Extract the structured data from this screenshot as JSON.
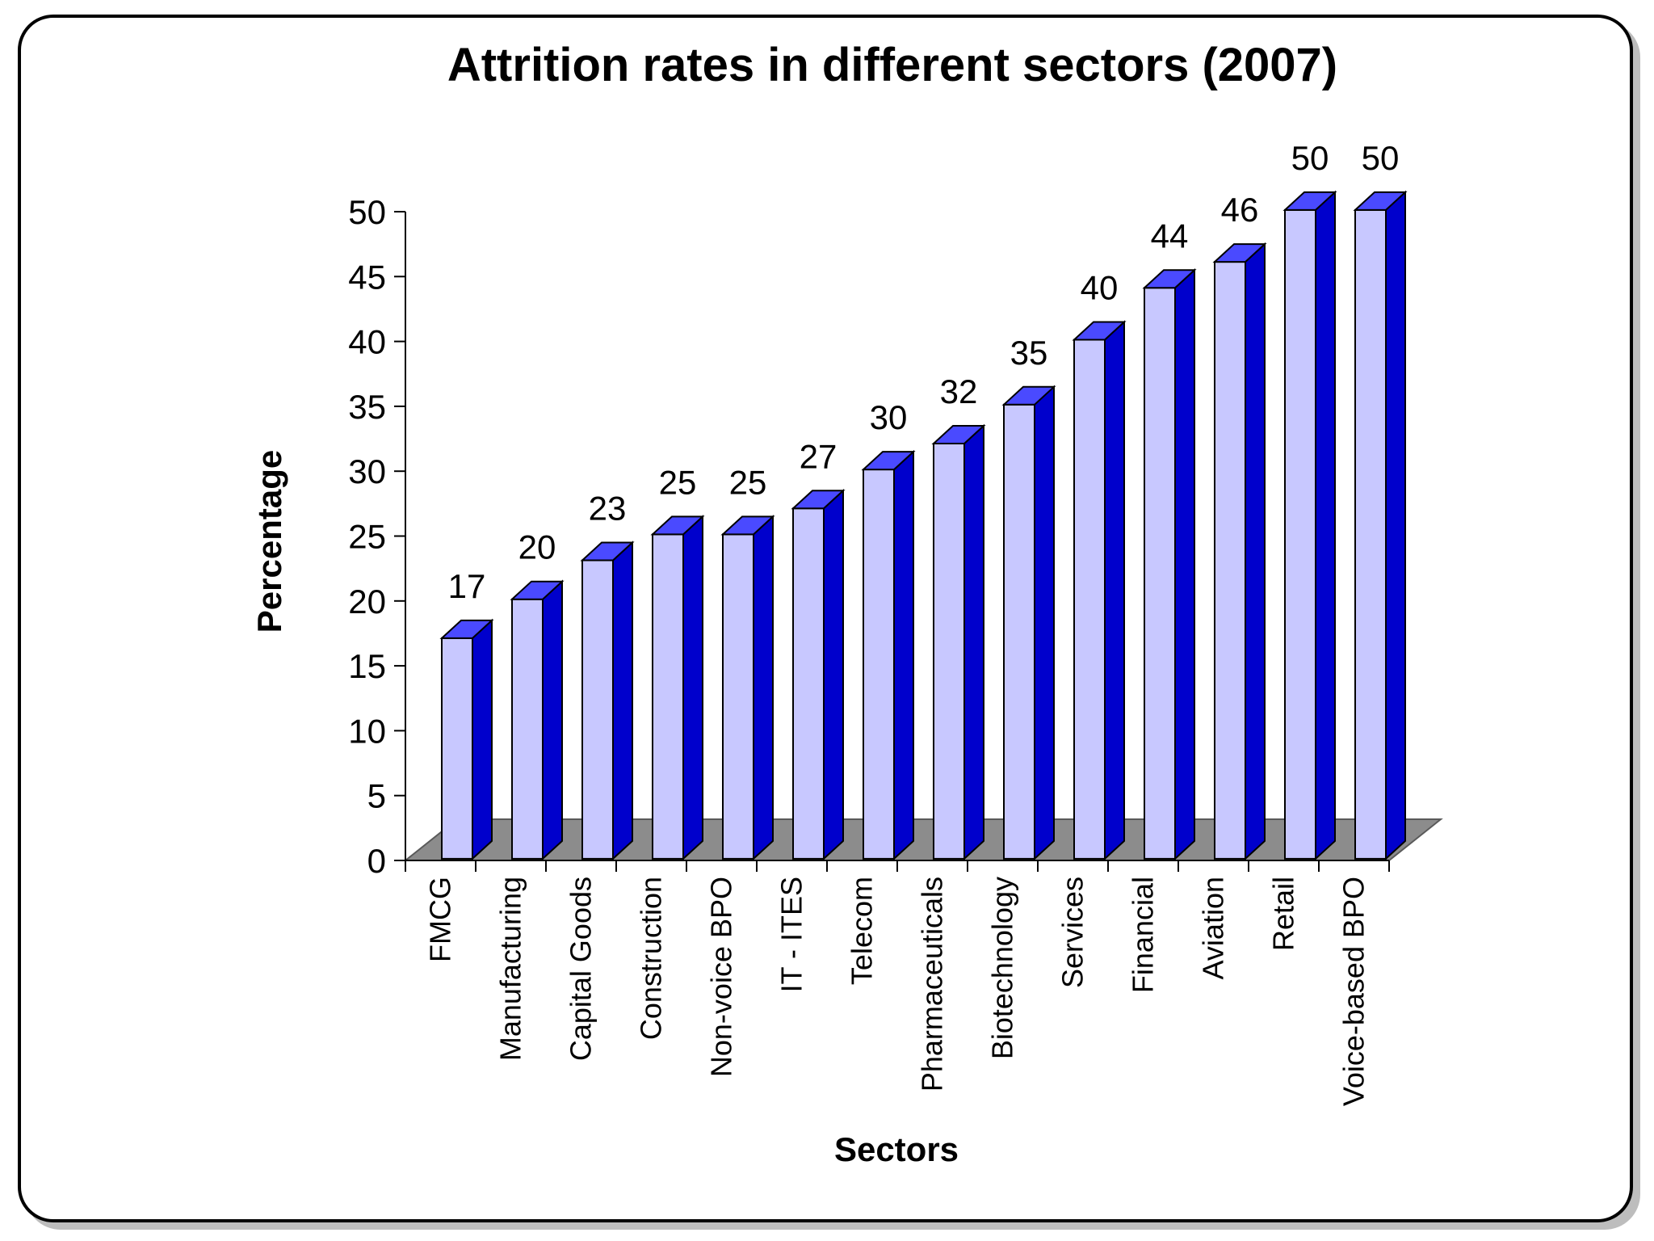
{
  "chart_data": {
    "type": "bar",
    "style": "3d-column",
    "title": "Attrition rates in different sectors (2007)",
    "xlabel": "Sectors",
    "ylabel": "Percentage",
    "ylim": [
      0,
      50
    ],
    "ytick_step": 5,
    "yticks": [
      "0",
      "5",
      "10",
      "15",
      "20",
      "25",
      "30",
      "35",
      "40",
      "45",
      "50"
    ],
    "categories": [
      "FMCG",
      "Manufacturing",
      "Capital Goods",
      "Construction",
      "Non-voice BPO",
      "IT - ITES",
      "Telecom",
      "Pharmaceuticals",
      "Biotechnology",
      "Services",
      "Financial",
      "Aviation",
      "Retail",
      "Voice-based BPO"
    ],
    "values": [
      17,
      20,
      23,
      25,
      25,
      27,
      30,
      32,
      35,
      40,
      44,
      46,
      50,
      50
    ],
    "value_labels": [
      "17",
      "20",
      "23",
      "25",
      "25",
      "27",
      "30",
      "32",
      "35",
      "40",
      "44",
      "46",
      "50",
      "50"
    ],
    "grid": false,
    "legend": "none",
    "colors": {
      "bar_front": "#c8c8ff",
      "bar_side": "#0000cc",
      "bar_top": "#4a4aff",
      "floor": "#8c8c8c",
      "outline": "#000000"
    }
  }
}
